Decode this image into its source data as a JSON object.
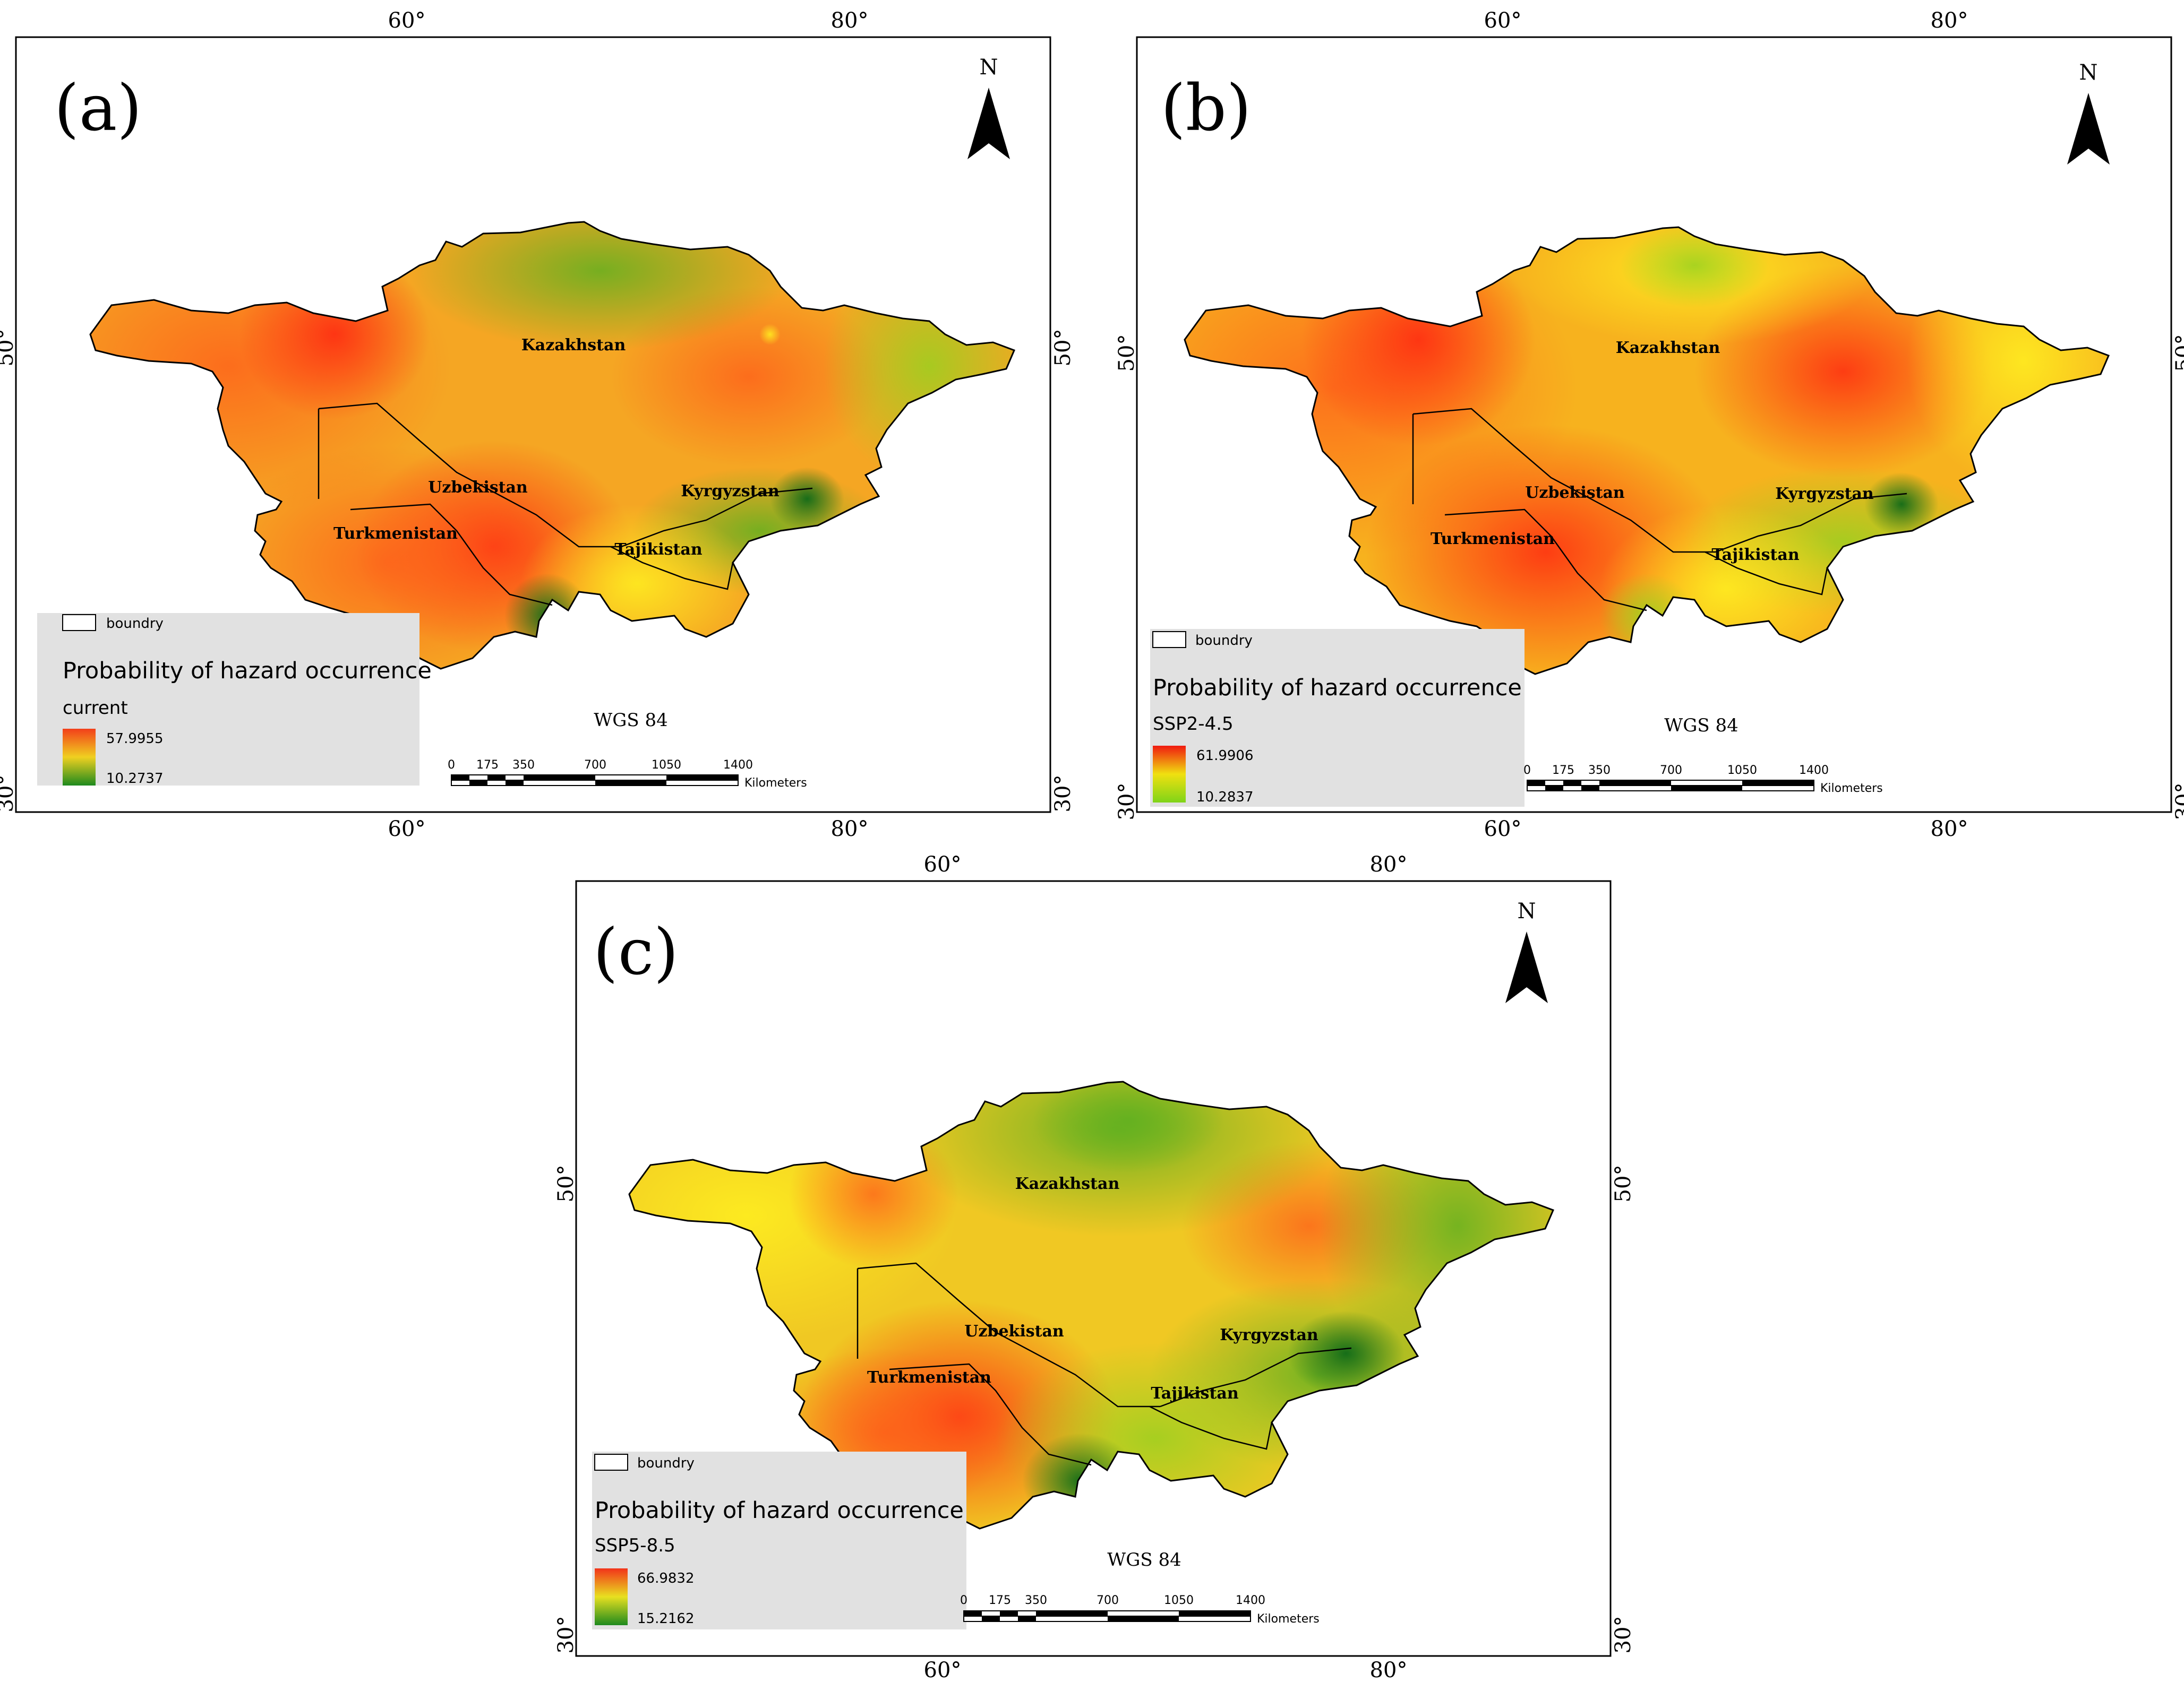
{
  "panels": [
    {
      "label": "(a)",
      "north": "N",
      "crs": "WGS 84",
      "countries": [
        "Kazakhstan",
        "Uzbekistan",
        "Kyrgyzstan",
        "Turkmenistan",
        "Tajikistan"
      ],
      "lon_ticks": [
        "60°",
        "80°"
      ],
      "lat_ticks": [
        "50°",
        "30°"
      ],
      "legend": {
        "boundary_label": "boundry",
        "title": "Probability of hazard occurrence",
        "scenario": "current",
        "max": "57.9955",
        "min": "10.2737",
        "colors": {
          "high": "#f23f1a",
          "mid": "#f0d020",
          "low": "#1e8a1e"
        }
      },
      "scale": {
        "ticks": [
          "0",
          "175",
          "350",
          "700",
          "1050",
          "1400"
        ],
        "unit": "Kilometers"
      }
    },
    {
      "label": "(b)",
      "north": "N",
      "crs": "WGS 84",
      "countries": [
        "Kazakhstan",
        "Uzbekistan",
        "Kyrgyzstan",
        "Turkmenistan",
        "Tajikistan"
      ],
      "lon_ticks": [
        "60°",
        "80°"
      ],
      "lat_ticks": [
        "50°",
        "30°"
      ],
      "legend": {
        "boundary_label": "boundry",
        "title": "Probability of hazard occurrence",
        "scenario": "SSP2-4.5",
        "max": "61.9906",
        "min": "10.2837",
        "colors": {
          "high": "#f01a10",
          "mid": "#f0e010",
          "low": "#7fd418"
        }
      },
      "scale": {
        "ticks": [
          "0",
          "175",
          "350",
          "700",
          "1050",
          "1400"
        ],
        "unit": "Kilometers"
      }
    },
    {
      "label": "(c)",
      "north": "N",
      "crs": "WGS 84",
      "countries": [
        "Kazakhstan",
        "Uzbekistan",
        "Kyrgyzstan",
        "Turkmenistan",
        "Tajikistan"
      ],
      "lon_ticks": [
        "60°",
        "80°"
      ],
      "lat_ticks": [
        "50°",
        "30°"
      ],
      "legend": {
        "boundary_label": "boundry",
        "title": "Probability of hazard occurrence",
        "scenario": "SSP5-8.5",
        "max": "66.9832",
        "min": "15.2162",
        "colors": {
          "high": "#f2331a",
          "mid": "#e8e020",
          "low": "#1e8a1e"
        }
      },
      "scale": {
        "ticks": [
          "0",
          "175",
          "350",
          "700",
          "1050",
          "1400"
        ],
        "unit": "Kilometers"
      }
    }
  ]
}
